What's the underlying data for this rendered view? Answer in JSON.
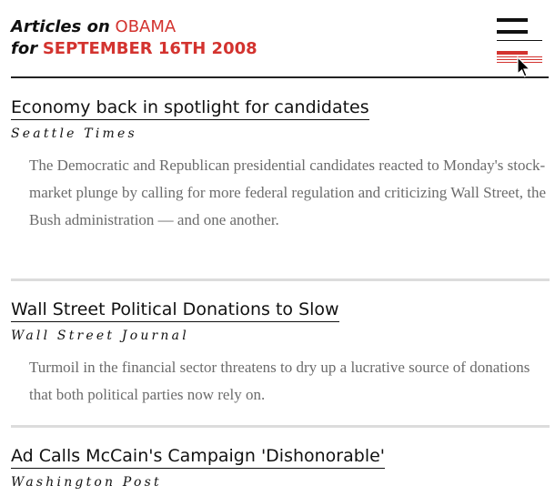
{
  "header": {
    "line1_label": "Articles on",
    "topic": "OBAMA",
    "line2_label": "for",
    "date": "SEPTEMBER 16TH 2008"
  },
  "menu": {
    "icon": "menu-bars-icon",
    "colors": {
      "dark": "#111111",
      "accent": "#d3332f"
    }
  },
  "articles": [
    {
      "title": "Economy back in spotlight for candidates",
      "source": "Seattle Times",
      "summary": "The Democratic and Republican presidential candidates reacted to Monday's stock-market plunge by calling for more federal regulation and criticizing Wall Street, the Bush administration — and one another."
    },
    {
      "title": "Wall Street Political Donations to Slow",
      "source": "Wall Street Journal",
      "summary": "Turmoil in the financial sector threatens to dry up a lucrative source of donations that both political parties now rely on."
    },
    {
      "title": "Ad Calls McCain's Campaign 'Dishonorable'",
      "source": "Washington Post",
      "summary": ""
    }
  ]
}
